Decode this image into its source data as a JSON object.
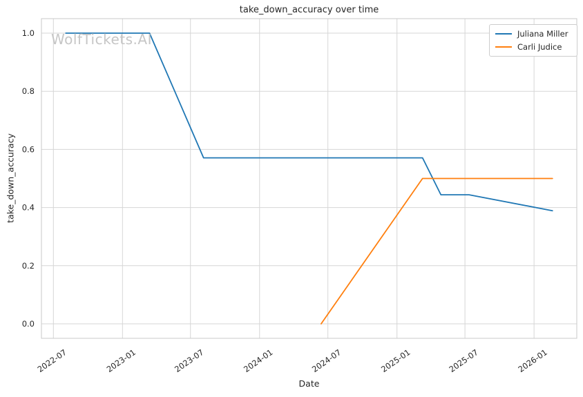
{
  "watermark": {
    "text": "WolfTickets.AI",
    "color": "#c6c6c6"
  },
  "chart_data": {
    "type": "line",
    "title": "take_down_accuracy over time",
    "xlabel": "Date",
    "ylabel": "take_down_accuracy",
    "grid": true,
    "legend_position": "upper right",
    "background_color": "#ffffff",
    "grid_color": "#d6d6d6",
    "spine_color": "#c9c9c9",
    "text_color": "#262626",
    "x_tick_labels": [
      "2022-07",
      "2023-01",
      "2023-07",
      "2024-01",
      "2024-07",
      "2025-01",
      "2025-07",
      "2026-01"
    ],
    "y_ticks": [
      0.0,
      0.2,
      0.4,
      0.6,
      0.8,
      1.0
    ],
    "ylim": [
      -0.05,
      1.05
    ],
    "x_tick_rotation_deg": 35,
    "series": [
      {
        "name": "Juliana Miller",
        "color": "#1f77b4",
        "points": [
          [
            "2022-08-03",
            1.0
          ],
          [
            "2023-03-14",
            1.0
          ],
          [
            "2023-08-05",
            0.571
          ],
          [
            "2025-03-10",
            0.571
          ],
          [
            "2025-04-28",
            0.444
          ],
          [
            "2025-07-12",
            0.444
          ],
          [
            "2026-02-19",
            0.389
          ]
        ]
      },
      {
        "name": "Carli Judice",
        "color": "#ff7f0e",
        "points": [
          [
            "2024-06-13",
            0.0
          ],
          [
            "2025-03-10",
            0.5
          ],
          [
            "2026-02-19",
            0.5
          ]
        ]
      }
    ]
  }
}
